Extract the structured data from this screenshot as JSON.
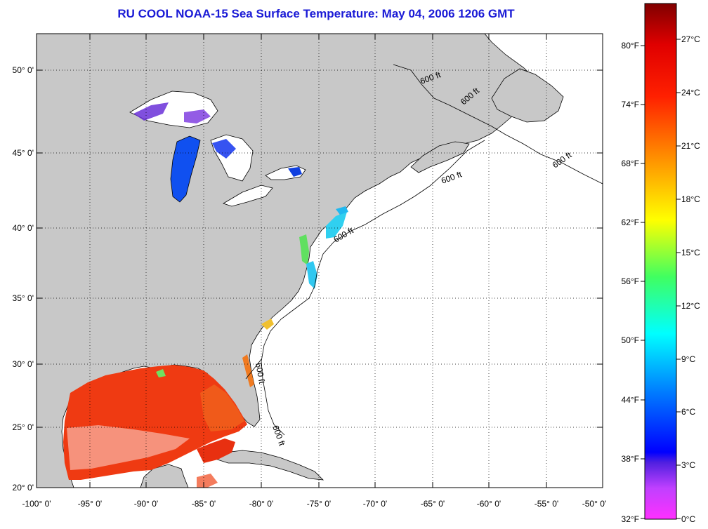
{
  "title": "RU COOL  NOAA-15  Sea Surface Temperature:  May 04, 2006 1206 GMT",
  "map": {
    "lat_labels": [
      "50° 0'",
      "45° 0'",
      "40° 0'",
      "35° 0'",
      "30° 0'",
      "25° 0'",
      "20° 0'"
    ],
    "lon_labels": [
      "-100° 0'",
      "-95° 0'",
      "-90° 0'",
      "-85° 0'",
      "-80° 0'",
      "-75° 0'",
      "-70° 0'",
      "-65° 0'",
      "-60° 0'",
      "-55° 0'",
      "-50° 0'"
    ],
    "contour_label": "600 ft",
    "land_color": "#c8c8c8",
    "no_data_color": "#ffffff"
  },
  "colorbar": {
    "fahrenheit_labels": [
      "80°F",
      "74°F",
      "68°F",
      "62°F",
      "56°F",
      "50°F",
      "44°F",
      "38°F",
      "32°F"
    ],
    "celsius_labels": [
      "27°C",
      "24°C",
      "21°C",
      "18°C",
      "15°C",
      "12°C",
      "9°C",
      "6°C",
      "3°C",
      "0°C"
    ]
  }
}
